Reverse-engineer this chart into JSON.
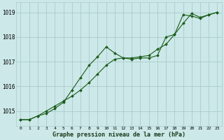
{
  "title": "Graphe pression niveau de la mer (hPa)",
  "background_color": "#cce8e8",
  "grid_color": "#aacccc",
  "line_color": "#1a5c1a",
  "x_labels": [
    "0",
    "1",
    "2",
    "3",
    "4",
    "5",
    "6",
    "7",
    "8",
    "9",
    "10",
    "11",
    "12",
    "13",
    "14",
    "15",
    "16",
    "17",
    "18",
    "19",
    "20",
    "21",
    "22",
    "23"
  ],
  "ylim": [
    1014.4,
    1019.4
  ],
  "yticks": [
    1015,
    1016,
    1017,
    1018,
    1019
  ],
  "line1_x": [
    0,
    1,
    2,
    3,
    4,
    5,
    6,
    7,
    8,
    9,
    10,
    11,
    12,
    13,
    14,
    15,
    16,
    17,
    18,
    19,
    20,
    21,
    22,
    23
  ],
  "line1_y": [
    1014.65,
    1014.65,
    1014.8,
    1014.9,
    1015.1,
    1015.35,
    1015.85,
    1016.35,
    1016.85,
    1017.2,
    1017.6,
    1017.35,
    1017.15,
    1017.1,
    1017.15,
    1017.15,
    1017.25,
    1018.0,
    1018.1,
    1018.9,
    1018.85,
    1018.75,
    1018.9,
    1019.0
  ],
  "line2_x": [
    0,
    1,
    2,
    3,
    4,
    5,
    6,
    7,
    8,
    9,
    10,
    11,
    12,
    13,
    14,
    15,
    16,
    17,
    18,
    19,
    20,
    21,
    22,
    23
  ],
  "line2_y": [
    1014.65,
    1014.65,
    1014.8,
    1015.0,
    1015.2,
    1015.4,
    1015.6,
    1015.85,
    1016.15,
    1016.5,
    1016.85,
    1017.1,
    1017.15,
    1017.15,
    1017.2,
    1017.25,
    1017.5,
    1017.7,
    1018.1,
    1018.55,
    1018.95,
    1018.8,
    1018.9,
    1019.0
  ]
}
